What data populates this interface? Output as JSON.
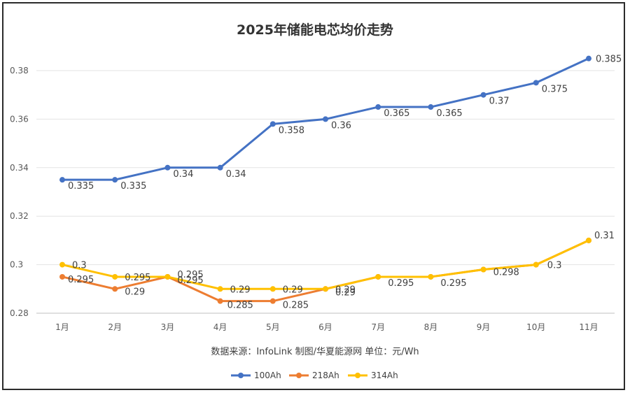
{
  "chart_data": {
    "type": "line",
    "title": "2025年储能电芯均价走势",
    "source_note": "数据来源：InfoLink 制图/华夏能源网  单位：元/Wh",
    "categories": [
      "1月",
      "2月",
      "3月",
      "4月",
      "5月",
      "6月",
      "7月",
      "8月",
      "9月",
      "10月",
      "11月"
    ],
    "y_ticks": [
      "0.28",
      "0.3",
      "0.32",
      "0.34",
      "0.36",
      "0.38"
    ],
    "ylim": [
      0.28,
      0.39
    ],
    "grid": "horizontal",
    "legend_position": "bottom",
    "series": [
      {
        "name": "100Ah",
        "color": "#4472C4",
        "values": [
          0.335,
          0.335,
          0.34,
          0.34,
          0.358,
          0.36,
          0.365,
          0.365,
          0.37,
          0.375,
          0.385
        ],
        "labels": [
          "0.335",
          "0.335",
          "0.34",
          "0.34",
          "0.358",
          "0.36",
          "0.365",
          "0.365",
          "0.37",
          "0.375",
          "0.385"
        ]
      },
      {
        "name": "218Ah",
        "color": "#ED7D31",
        "values": [
          0.295,
          0.29,
          0.295,
          0.285,
          0.285,
          0.29,
          0.295,
          0.295,
          0.298,
          0.3,
          0.31
        ],
        "labels": [
          "0.295",
          "0.29",
          "0.295",
          "0.285",
          "0.285",
          "0.29",
          "",
          "",
          "",
          "",
          ""
        ]
      },
      {
        "name": "314Ah",
        "color": "#FFC000",
        "values": [
          0.3,
          0.295,
          0.295,
          0.29,
          0.29,
          0.29,
          0.295,
          0.295,
          0.298,
          0.3,
          0.31
        ],
        "labels": [
          "0.3",
          "0.295",
          "0.295",
          "0.29",
          "0.29",
          "0.29",
          "0.295",
          "0.295",
          "0.298",
          "0.3",
          "0.31"
        ]
      }
    ]
  }
}
